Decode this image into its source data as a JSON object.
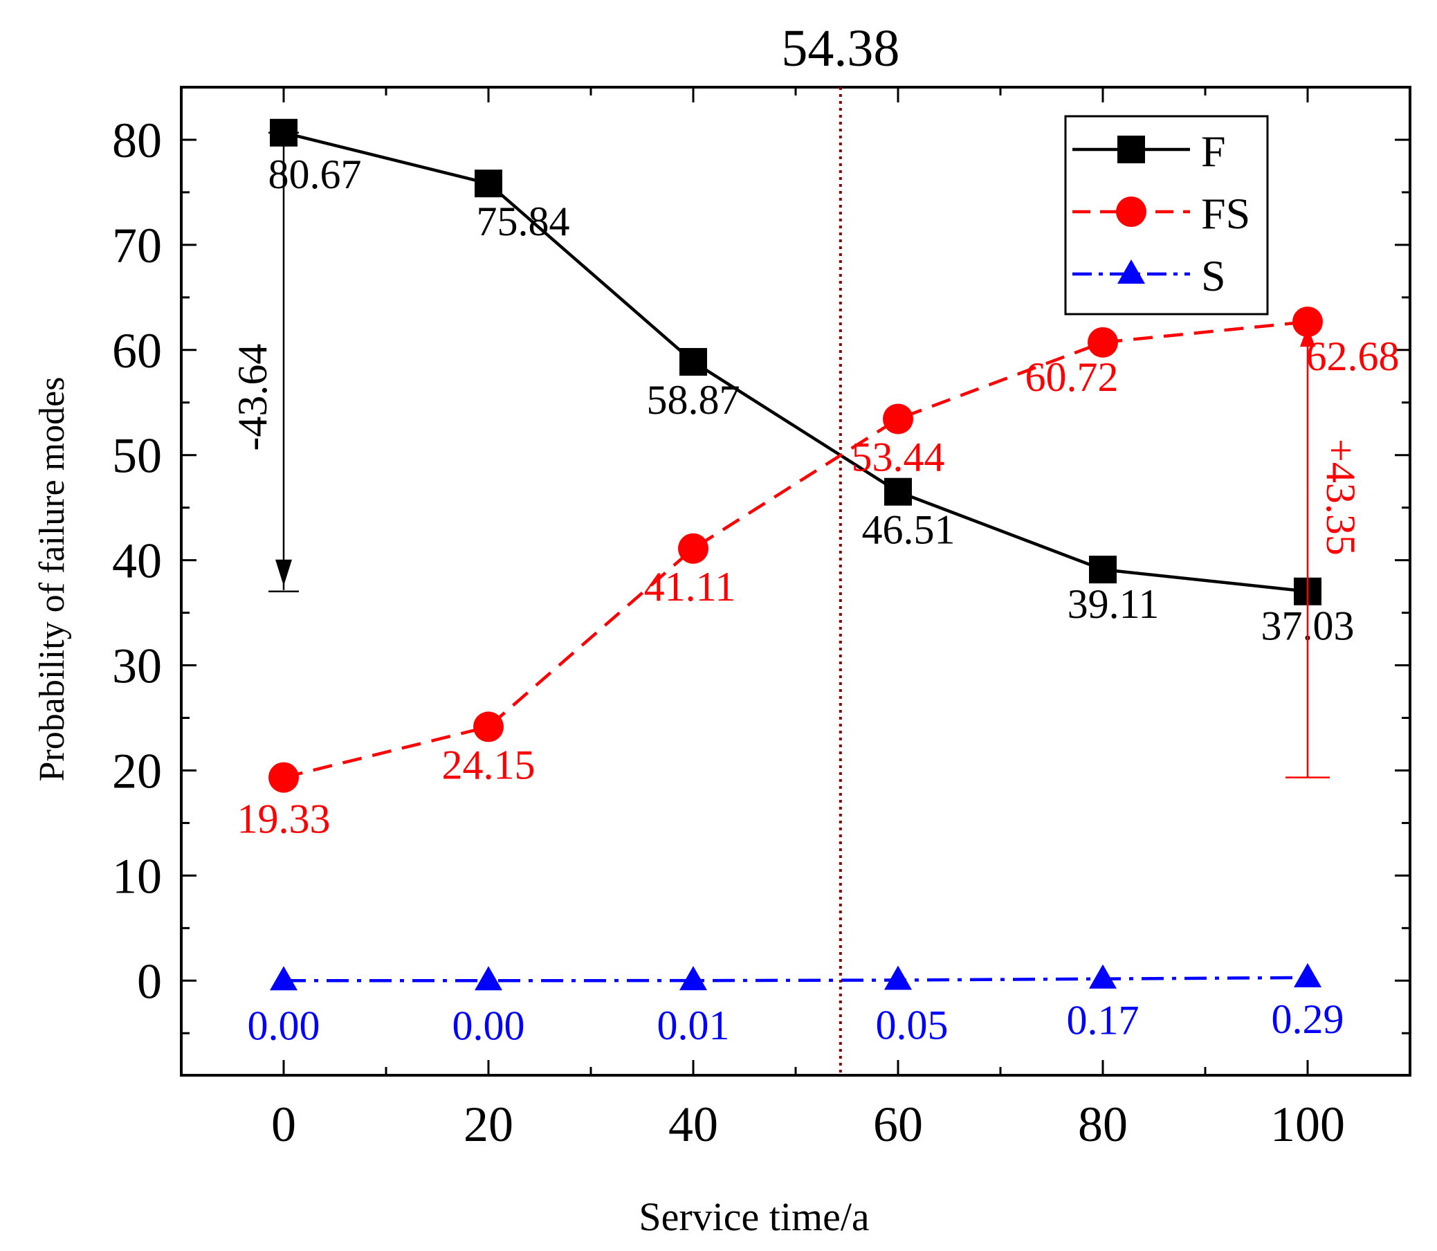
{
  "chart_data": {
    "type": "line",
    "title": "",
    "xlabel": "Service time/a",
    "ylabel": "Probability of failure modes",
    "x": [
      0,
      20,
      40,
      60,
      80,
      100
    ],
    "xlim": [
      -10,
      110
    ],
    "ylim": [
      -9,
      85
    ],
    "xticks": [
      0,
      20,
      40,
      60,
      80,
      100
    ],
    "yticks": [
      0,
      10,
      20,
      30,
      40,
      50,
      60,
      70,
      80
    ],
    "xtick_labels": [
      "0",
      "20",
      "40",
      "60",
      "80",
      "100"
    ],
    "ytick_labels": [
      "0",
      "10",
      "20",
      "30",
      "40",
      "50",
      "60",
      "70",
      "80"
    ],
    "grid": false,
    "legend_position": "top-right",
    "series": [
      {
        "name": "F",
        "color": "#000000",
        "marker": "square",
        "line": "solid",
        "values": [
          80.67,
          75.84,
          58.87,
          46.51,
          39.11,
          37.03
        ],
        "labels": [
          "80.67",
          "75.84",
          "58.87",
          "46.51",
          "39.11",
          "37.03"
        ]
      },
      {
        "name": "FS",
        "color": "#ff0000",
        "marker": "circle",
        "line": "dashed",
        "values": [
          19.33,
          24.15,
          41.11,
          53.44,
          60.72,
          62.68
        ],
        "labels": [
          "19.33",
          "24.15",
          "41.11",
          "53.44",
          "60.72",
          "62.68"
        ]
      },
      {
        "name": "S",
        "color": "#0000ff",
        "marker": "triangle",
        "line": "dash-dot",
        "values": [
          0.0,
          0.0,
          0.01,
          0.05,
          0.17,
          0.29
        ],
        "labels": [
          "0.00",
          "0.00",
          "0.01",
          "0.05",
          "0.17",
          "0.29"
        ]
      }
    ],
    "crossover": {
      "x": 54.38,
      "label": "54.38",
      "color": "#8b0000"
    },
    "annotations": [
      {
        "label": "-43.64",
        "x": 0,
        "from": 80.67,
        "to": 37.03,
        "color": "#000000"
      },
      {
        "label": "+43.35",
        "x": 100,
        "from": 19.33,
        "to": 62.68,
        "color": "#ff0000"
      }
    ]
  }
}
